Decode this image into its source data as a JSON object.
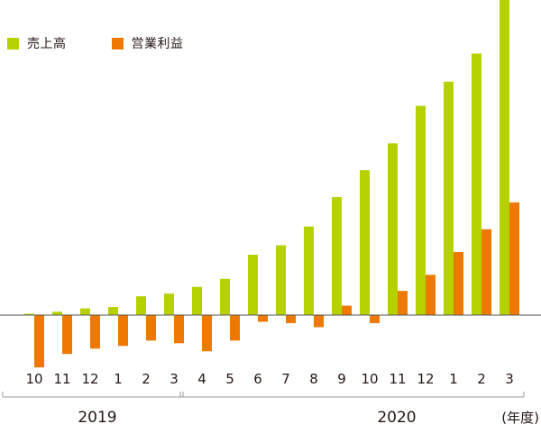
{
  "chart_data": {
    "type": "bar",
    "categories": [
      "10",
      "11",
      "12",
      "1",
      "2",
      "3",
      "4",
      "5",
      "6",
      "7",
      "8",
      "9",
      "10",
      "11",
      "12",
      "1",
      "2",
      "3"
    ],
    "series": [
      {
        "name": "売上高",
        "values": [
          1,
          2.5,
          5,
          6,
          14,
          16,
          21,
          27,
          45,
          52,
          66,
          88,
          108,
          128,
          156,
          174,
          195,
          235
        ],
        "color": "#b6d100"
      },
      {
        "name": "営業利益",
        "values": [
          -39,
          -29,
          -25,
          -23,
          -19,
          -21,
          -27,
          -19,
          -5,
          -6,
          -9,
          7,
          -6,
          18,
          30,
          47,
          64,
          84
        ],
        "color": "#ee7800"
      }
    ],
    "year_groups": [
      {
        "label": "2019",
        "from_index": 0,
        "to_index": 5
      },
      {
        "label": "2020",
        "from_index": 6,
        "to_index": 17
      }
    ],
    "x_unit_label": "(年度)",
    "legend_position": "top-left",
    "grid": false
  }
}
